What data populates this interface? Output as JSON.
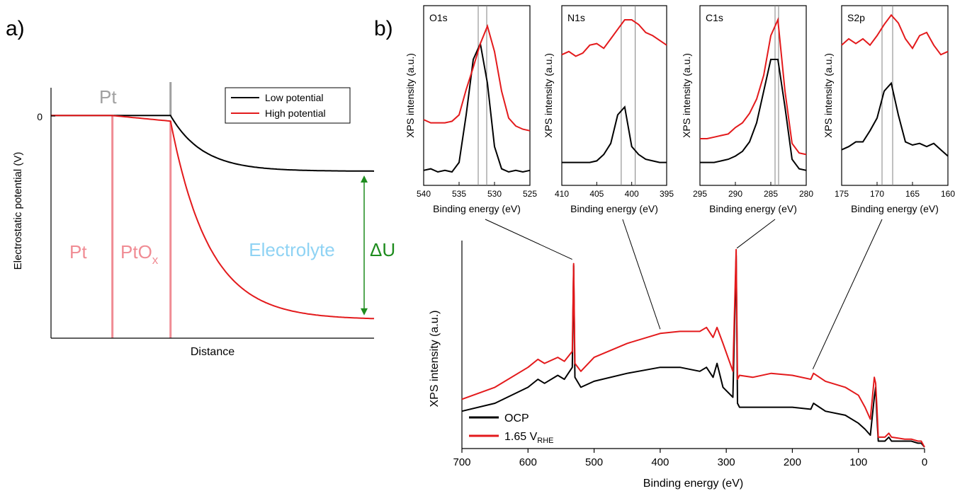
{
  "panel_labels": {
    "a": "a)",
    "b": "b)"
  },
  "colors": {
    "low": "#000000",
    "high": "#e31a1c",
    "pt_gray": "#a0a0a0",
    "pt_pink": "#f08c94",
    "electrolyte": "#8fd3f4",
    "delta": "#1e8c1e",
    "binding_line": "#808080"
  },
  "chart_data": [
    {
      "type": "line",
      "panel": "a",
      "xlabel": "Distance",
      "ylabel": "Electrostatic potential (V)",
      "y_tick_label": "0",
      "xlim": [
        0,
        1
      ],
      "ylim": [
        -1.2,
        0.15
      ],
      "series": [
        {
          "name": "Low potential",
          "color": "#000000",
          "flat_level": 0,
          "interface_x": 0.37,
          "final_level": -0.3,
          "decay_length": 0.1
        },
        {
          "name": "High potential",
          "color": "#e31a1c",
          "flat_level": 0,
          "oxide_start_x": 0.19,
          "interface_x": 0.37,
          "interface_level": -0.03,
          "final_level": -1.1,
          "decay_length": 0.12
        }
      ],
      "legend": {
        "position": "top-right"
      },
      "annotations": {
        "pt_top": "Pt",
        "pt": "Pt",
        "ptox_base": "PtO",
        "ptox_sub": "x",
        "electrolyte": "Electrolyte",
        "delta_u": "ΔU"
      }
    },
    {
      "type": "line",
      "panel": "b-O1s",
      "title": "O1s",
      "xlabel": "Binding energy (eV)",
      "ylabel": "XPS intensity (a.u.)",
      "xlim": [
        540,
        525
      ],
      "xticks": [
        540,
        535,
        530,
        525
      ],
      "vlines": [
        532.3,
        531.1
      ],
      "series": [
        {
          "name": "OCP",
          "x": [
            540,
            539,
            538,
            537,
            536,
            535,
            534,
            533,
            532,
            531,
            530,
            529,
            528,
            527,
            526,
            525
          ],
          "y": [
            0.05,
            0.06,
            0.04,
            0.05,
            0.04,
            0.1,
            0.4,
            0.75,
            0.85,
            0.6,
            0.2,
            0.06,
            0.04,
            0.05,
            0.04,
            0.05
          ]
        },
        {
          "name": "1.65 V_RHE",
          "x": [
            540,
            539,
            538,
            537,
            536,
            535,
            534,
            533,
            532,
            531,
            530,
            529,
            528,
            527,
            526,
            525
          ],
          "y": [
            0.37,
            0.35,
            0.35,
            0.35,
            0.36,
            0.4,
            0.56,
            0.7,
            0.85,
            0.96,
            0.8,
            0.55,
            0.38,
            0.33,
            0.31,
            0.3
          ]
        }
      ]
    },
    {
      "type": "line",
      "panel": "b-N1s",
      "title": "N1s",
      "xlabel": "Binding energy (eV)",
      "ylabel": "XPS intensity (a.u.)",
      "xlim": [
        410,
        395
      ],
      "xticks": [
        410,
        405,
        400,
        395
      ],
      "vlines": [
        401.5,
        399.5
      ],
      "series": [
        {
          "name": "OCP",
          "x": [
            410,
            409,
            408,
            407,
            406,
            405,
            404,
            403,
            402,
            401,
            400,
            399,
            398,
            397,
            396,
            395
          ],
          "y": [
            0.1,
            0.1,
            0.1,
            0.1,
            0.1,
            0.11,
            0.15,
            0.22,
            0.4,
            0.45,
            0.2,
            0.15,
            0.12,
            0.11,
            0.1,
            0.1
          ]
        },
        {
          "name": "1.65 V_RHE",
          "x": [
            410,
            409,
            408,
            407,
            406,
            405,
            404,
            403,
            402,
            401,
            400,
            399,
            398,
            397,
            396,
            395
          ],
          "y": [
            0.78,
            0.8,
            0.77,
            0.79,
            0.84,
            0.85,
            0.82,
            0.88,
            0.94,
            1.0,
            1.0,
            0.97,
            0.92,
            0.9,
            0.87,
            0.84
          ]
        }
      ]
    },
    {
      "type": "line",
      "panel": "b-C1s",
      "title": "C1s",
      "xlabel": "Binding energy (eV)",
      "ylabel": "XPS intensity (a.u.)",
      "xlim": [
        295,
        280
      ],
      "xticks": [
        295,
        290,
        285,
        280
      ],
      "vlines": [
        284.4,
        283.9
      ],
      "series": [
        {
          "name": "OCP",
          "x": [
            295,
            294,
            293,
            292,
            291,
            290,
            289,
            288,
            287,
            286,
            285,
            284,
            283,
            282,
            281,
            280
          ],
          "y": [
            0.1,
            0.1,
            0.1,
            0.11,
            0.12,
            0.14,
            0.17,
            0.23,
            0.35,
            0.55,
            0.75,
            0.75,
            0.45,
            0.12,
            0.06,
            0.05
          ]
        },
        {
          "name": "1.65 V_RHE",
          "x": [
            295,
            294,
            293,
            292,
            291,
            290,
            289,
            288,
            287,
            286,
            285,
            284,
            283,
            282,
            281,
            280
          ],
          "y": [
            0.25,
            0.25,
            0.26,
            0.27,
            0.28,
            0.32,
            0.35,
            0.41,
            0.5,
            0.65,
            0.9,
            1.0,
            0.55,
            0.22,
            0.16,
            0.15
          ]
        }
      ]
    },
    {
      "type": "line",
      "panel": "b-S2p",
      "title": "S2p",
      "xlabel": "Binding energy (eV)",
      "ylabel": "XPS intensity (a.u.)",
      "xlim": [
        175,
        160
      ],
      "xticks": [
        175,
        170,
        165,
        160
      ],
      "vlines": [
        169.3,
        167.8
      ],
      "series": [
        {
          "name": "OCP",
          "x": [
            175,
            174,
            173,
            172,
            171,
            170,
            169,
            168,
            167,
            166,
            165,
            164,
            163,
            162,
            161,
            160
          ],
          "y": [
            0.18,
            0.2,
            0.23,
            0.23,
            0.3,
            0.38,
            0.55,
            0.6,
            0.4,
            0.23,
            0.21,
            0.22,
            0.2,
            0.22,
            0.18,
            0.14
          ]
        },
        {
          "name": "1.65 V_RHE",
          "x": [
            175,
            174,
            173,
            172,
            171,
            170,
            169,
            168,
            167,
            166,
            165,
            164,
            163,
            162,
            161,
            160
          ],
          "y": [
            0.84,
            0.88,
            0.85,
            0.88,
            0.84,
            0.9,
            0.97,
            1.03,
            0.98,
            0.88,
            0.82,
            0.9,
            0.92,
            0.84,
            0.78,
            0.8
          ]
        }
      ]
    },
    {
      "type": "line",
      "panel": "b-survey",
      "xlabel": "Binding energy (eV)",
      "ylabel": "XPS intensity (a.u.)",
      "xlim": [
        700,
        0
      ],
      "xticks": [
        700,
        600,
        500,
        400,
        300,
        200,
        100,
        0
      ],
      "ylim": [
        0,
        1
      ],
      "series": [
        {
          "name": "OCP",
          "color": "#000000",
          "x": [
            700,
            650,
            600,
            585,
            575,
            555,
            545,
            533,
            531,
            529,
            520,
            500,
            450,
            400,
            370,
            340,
            330,
            320,
            314,
            305,
            290,
            285,
            283,
            280,
            260,
            232,
            200,
            172,
            168,
            150,
            120,
            100,
            90,
            82,
            76,
            74,
            72,
            70,
            60,
            54,
            50,
            30,
            20,
            10,
            5,
            0
          ],
          "y": [
            0.18,
            0.22,
            0.3,
            0.34,
            0.32,
            0.36,
            0.34,
            0.4,
            0.91,
            0.35,
            0.3,
            0.33,
            0.37,
            0.4,
            0.4,
            0.38,
            0.4,
            0.35,
            0.42,
            0.3,
            0.25,
            0.96,
            0.22,
            0.2,
            0.2,
            0.2,
            0.2,
            0.19,
            0.22,
            0.18,
            0.16,
            0.12,
            0.09,
            0.06,
            0.25,
            0.3,
            0.15,
            0.03,
            0.03,
            0.05,
            0.03,
            0.03,
            0.03,
            0.02,
            0.02,
            0.0
          ]
        },
        {
          "name": "1.65 V_RHE",
          "color": "#e31a1c",
          "x": [
            700,
            650,
            600,
            585,
            575,
            555,
            545,
            533,
            531,
            529,
            520,
            500,
            450,
            400,
            370,
            340,
            330,
            320,
            314,
            305,
            290,
            285,
            283,
            280,
            260,
            232,
            200,
            172,
            168,
            150,
            120,
            100,
            90,
            82,
            76,
            74,
            72,
            70,
            60,
            54,
            50,
            30,
            20,
            10,
            5,
            0
          ],
          "y": [
            0.24,
            0.3,
            0.4,
            0.44,
            0.42,
            0.45,
            0.43,
            0.48,
            0.92,
            0.42,
            0.38,
            0.45,
            0.52,
            0.57,
            0.58,
            0.58,
            0.6,
            0.55,
            0.6,
            0.52,
            0.38,
            0.99,
            0.34,
            0.36,
            0.35,
            0.37,
            0.36,
            0.34,
            0.37,
            0.33,
            0.3,
            0.26,
            0.2,
            0.14,
            0.35,
            0.32,
            0.2,
            0.05,
            0.05,
            0.07,
            0.05,
            0.04,
            0.04,
            0.03,
            0.03,
            0.0
          ]
        }
      ],
      "legend": {
        "position": "bottom-left",
        "entries": [
          {
            "label": "OCP",
            "color": "#000000"
          },
          {
            "label": "1.65 V",
            "sub": "RHE",
            "color": "#e31a1c"
          }
        ]
      },
      "connector_lines": [
        {
          "from_panel": "b-O1s",
          "peak_x": 531
        },
        {
          "from_panel": "b-N1s",
          "peak_x": 400
        },
        {
          "from_panel": "b-C1s",
          "peak_x": 284
        },
        {
          "from_panel": "b-S2p",
          "peak_x": 169
        }
      ]
    }
  ]
}
